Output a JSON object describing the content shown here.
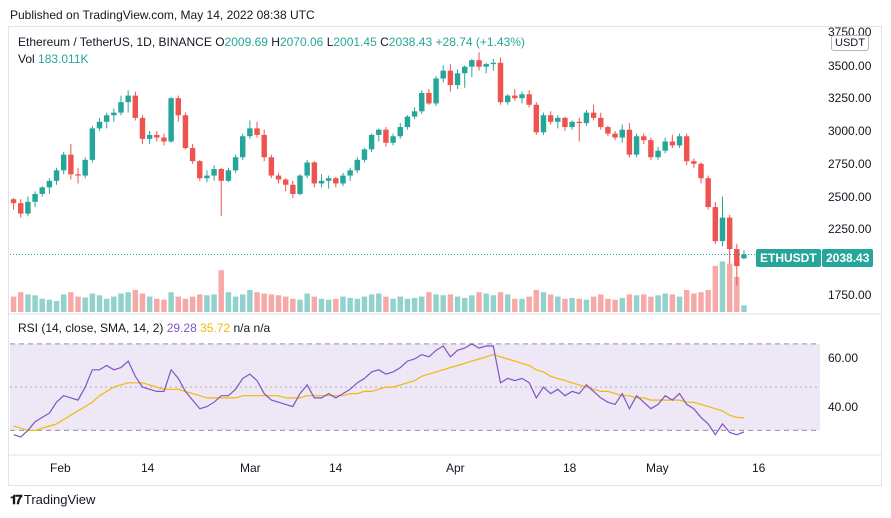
{
  "header": {
    "published": "Published on TradingView.com, May 14, 2022 08:38 UTC"
  },
  "legend": {
    "symbol": "Ethereum / TetherUS, 1D, BINANCE",
    "o_label": "O",
    "o": "2009.69",
    "h_label": "H",
    "h": "2070.06",
    "l_label": "L",
    "l": "2001.45",
    "c_label": "C",
    "c": "2038.43",
    "change": "+28.74 (+1.43%)",
    "vol_label": "Vol",
    "vol": "183.011K"
  },
  "rsi_legend": {
    "label": "RSI (14, close, SMA, 14, 2)",
    "rsi": "29.28",
    "ma": "35.72",
    "na1": "n/a",
    "na2": "n/a"
  },
  "tags": {
    "symbol": "ETHUSDT",
    "price": "2038.43",
    "currency": "USDT"
  },
  "price_axis": [
    "3750.00",
    "3500.00",
    "3250.00",
    "3000.00",
    "2750.00",
    "2500.00",
    "2250.00",
    "1750.00"
  ],
  "rsi_axis": [
    "60.00",
    "40.00"
  ],
  "x_axis": [
    "Feb",
    "14",
    "Mar",
    "14",
    "Apr",
    "18",
    "May",
    "16"
  ],
  "brand": "TradingView",
  "colors": {
    "up": "#26a69a",
    "down": "#ef5350",
    "rsi": "#7e57c2",
    "rsi_ma": "#f0b90b",
    "band": "#ede7f6"
  },
  "chart_data": {
    "type": "candlestick",
    "title": "Ethereum / TetherUS, 1D, BINANCE",
    "ylim": [
      1600,
      3750
    ],
    "candles": [
      [
        2460,
        2470,
        2380,
        2430
      ],
      [
        2430,
        2460,
        2320,
        2350
      ],
      [
        2350,
        2480,
        2330,
        2440
      ],
      [
        2440,
        2520,
        2400,
        2500
      ],
      [
        2500,
        2560,
        2480,
        2550
      ],
      [
        2550,
        2620,
        2500,
        2600
      ],
      [
        2600,
        2700,
        2570,
        2680
      ],
      [
        2680,
        2820,
        2650,
        2800
      ],
      [
        2800,
        2880,
        2610,
        2650
      ],
      [
        2650,
        2700,
        2580,
        2640
      ],
      [
        2640,
        2780,
        2620,
        2760
      ],
      [
        2760,
        3020,
        2740,
        3000
      ],
      [
        3000,
        3080,
        2980,
        3050
      ],
      [
        3050,
        3120,
        3000,
        3100
      ],
      [
        3100,
        3150,
        3050,
        3120
      ],
      [
        3120,
        3250,
        3100,
        3200
      ],
      [
        3200,
        3290,
        3120,
        3250
      ],
      [
        3250,
        3280,
        3060,
        3080
      ],
      [
        3080,
        3100,
        2880,
        2920
      ],
      [
        2920,
        2980,
        2880,
        2950
      ],
      [
        2950,
        2980,
        2900,
        2930
      ],
      [
        2930,
        2960,
        2870,
        2900
      ],
      [
        2900,
        3240,
        2890,
        3230
      ],
      [
        3230,
        3250,
        3050,
        3100
      ],
      [
        3100,
        3120,
        2840,
        2850
      ],
      [
        2850,
        2880,
        2730,
        2750
      ],
      [
        2750,
        2760,
        2600,
        2620
      ],
      [
        2620,
        2680,
        2590,
        2640
      ],
      [
        2640,
        2720,
        2600,
        2690
      ],
      [
        2690,
        2700,
        2330,
        2600
      ],
      [
        2600,
        2700,
        2590,
        2680
      ],
      [
        2680,
        2800,
        2660,
        2780
      ],
      [
        2780,
        2960,
        2760,
        2940
      ],
      [
        2940,
        3060,
        2920,
        3000
      ],
      [
        3000,
        3050,
        2930,
        2950
      ],
      [
        2950,
        2990,
        2750,
        2780
      ],
      [
        2780,
        2800,
        2620,
        2640
      ],
      [
        2640,
        2660,
        2580,
        2610
      ],
      [
        2610,
        2620,
        2520,
        2570
      ],
      [
        2570,
        2600,
        2470,
        2500
      ],
      [
        2500,
        2650,
        2490,
        2640
      ],
      [
        2640,
        2760,
        2620,
        2740
      ],
      [
        2740,
        2750,
        2550,
        2580
      ],
      [
        2580,
        2650,
        2550,
        2600
      ],
      [
        2600,
        2640,
        2540,
        2620
      ],
      [
        2620,
        2630,
        2550,
        2580
      ],
      [
        2580,
        2660,
        2560,
        2640
      ],
      [
        2640,
        2700,
        2600,
        2680
      ],
      [
        2680,
        2780,
        2660,
        2760
      ],
      [
        2760,
        2850,
        2740,
        2840
      ],
      [
        2840,
        2960,
        2820,
        2950
      ],
      [
        2950,
        3000,
        2900,
        2990
      ],
      [
        2990,
        3010,
        2860,
        2890
      ],
      [
        2890,
        2960,
        2870,
        2940
      ],
      [
        2940,
        3040,
        2920,
        3010
      ],
      [
        3010,
        3100,
        2990,
        3090
      ],
      [
        3090,
        3160,
        3070,
        3130
      ],
      [
        3130,
        3290,
        3110,
        3270
      ],
      [
        3270,
        3300,
        3180,
        3190
      ],
      [
        3190,
        3400,
        3170,
        3380
      ],
      [
        3380,
        3480,
        3350,
        3440
      ],
      [
        3440,
        3490,
        3280,
        3330
      ],
      [
        3330,
        3450,
        3300,
        3420
      ],
      [
        3420,
        3480,
        3310,
        3470
      ],
      [
        3470,
        3530,
        3390,
        3520
      ],
      [
        3520,
        3580,
        3440,
        3470
      ],
      [
        3470,
        3500,
        3420,
        3490
      ],
      [
        3490,
        3530,
        3440,
        3500
      ],
      [
        3500,
        3540,
        3180,
        3200
      ],
      [
        3200,
        3260,
        3180,
        3250
      ],
      [
        3250,
        3300,
        3210,
        3230
      ],
      [
        3230,
        3280,
        3190,
        3260
      ],
      [
        3260,
        3290,
        3160,
        3180
      ],
      [
        3180,
        3200,
        2950,
        2970
      ],
      [
        2970,
        3120,
        2950,
        3100
      ],
      [
        3100,
        3130,
        3030,
        3050
      ],
      [
        3050,
        3100,
        3000,
        3080
      ],
      [
        3080,
        3090,
        2980,
        3010
      ],
      [
        3010,
        3060,
        2990,
        3050
      ],
      [
        3050,
        3080,
        2900,
        3040
      ],
      [
        3040,
        3140,
        3020,
        3120
      ],
      [
        3120,
        3180,
        3060,
        3080
      ],
      [
        3080,
        3120,
        2990,
        3010
      ],
      [
        3010,
        3020,
        2940,
        2960
      ],
      [
        2960,
        2980,
        2910,
        2930
      ],
      [
        2930,
        3030,
        2890,
        2990
      ],
      [
        2990,
        3040,
        2780,
        2800
      ],
      [
        2800,
        2960,
        2780,
        2940
      ],
      [
        2940,
        2960,
        2880,
        2910
      ],
      [
        2910,
        2930,
        2760,
        2780
      ],
      [
        2780,
        2860,
        2760,
        2830
      ],
      [
        2830,
        2930,
        2810,
        2900
      ],
      [
        2900,
        2950,
        2850,
        2870
      ],
      [
        2870,
        2960,
        2850,
        2940
      ],
      [
        2940,
        2960,
        2720,
        2750
      ],
      [
        2750,
        2770,
        2700,
        2730
      ],
      [
        2730,
        2740,
        2580,
        2620
      ],
      [
        2620,
        2640,
        2380,
        2400
      ],
      [
        2400,
        2440,
        2120,
        2140
      ],
      [
        2140,
        2480,
        2100,
        2320
      ],
      [
        2320,
        2340,
        1970,
        2080
      ],
      [
        2080,
        2120,
        1800,
        1950
      ],
      [
        2009.69,
        2070.06,
        2001.45,
        2038.43
      ]
    ],
    "volume_relative": [
      0.35,
      0.45,
      0.4,
      0.38,
      0.3,
      0.28,
      0.25,
      0.4,
      0.45,
      0.35,
      0.33,
      0.42,
      0.38,
      0.3,
      0.35,
      0.42,
      0.45,
      0.5,
      0.42,
      0.35,
      0.3,
      0.28,
      0.45,
      0.35,
      0.3,
      0.35,
      0.4,
      0.38,
      0.4,
      0.95,
      0.45,
      0.35,
      0.4,
      0.5,
      0.45,
      0.42,
      0.4,
      0.38,
      0.35,
      0.3,
      0.28,
      0.42,
      0.35,
      0.3,
      0.28,
      0.3,
      0.35,
      0.32,
      0.3,
      0.35,
      0.4,
      0.42,
      0.35,
      0.3,
      0.35,
      0.3,
      0.32,
      0.35,
      0.45,
      0.4,
      0.38,
      0.4,
      0.35,
      0.32,
      0.38,
      0.45,
      0.42,
      0.38,
      0.45,
      0.4,
      0.3,
      0.3,
      0.35,
      0.5,
      0.45,
      0.4,
      0.35,
      0.3,
      0.32,
      0.3,
      0.28,
      0.35,
      0.4,
      0.3,
      0.28,
      0.32,
      0.4,
      0.38,
      0.4,
      0.35,
      0.38,
      0.42,
      0.4,
      0.35,
      0.5,
      0.42,
      0.45,
      0.5,
      1.05,
      1.15,
      1.1,
      0.8,
      0.15
    ],
    "rsi": [
      28,
      27,
      30,
      34,
      36,
      38,
      43,
      46,
      45,
      44,
      50,
      58,
      58,
      60,
      58,
      59,
      62,
      55,
      50,
      49,
      48,
      48,
      58,
      54,
      48,
      44,
      40,
      41,
      43,
      46,
      46,
      49,
      54,
      56,
      53,
      47,
      44,
      43,
      42,
      41,
      47,
      51,
      45,
      45,
      47,
      45,
      47,
      49,
      52,
      54,
      57,
      58,
      56,
      57,
      59,
      62,
      63,
      65,
      64,
      67,
      69,
      64,
      67,
      68,
      70,
      68,
      69,
      69,
      52,
      54,
      53,
      54,
      52,
      45,
      50,
      47,
      49,
      46,
      48,
      47,
      51,
      48,
      45,
      43,
      42,
      47,
      40,
      46,
      43,
      40,
      42,
      46,
      44,
      47,
      42,
      40,
      36,
      33,
      28,
      33,
      29,
      28,
      29.28
    ],
    "rsi_ma": [
      32,
      31,
      30,
      30,
      31,
      32,
      33,
      35,
      37,
      39,
      41,
      43,
      46,
      48,
      50,
      51,
      52,
      52,
      52,
      51,
      50,
      49,
      49,
      49,
      48,
      47,
      46,
      45,
      45,
      45,
      45,
      45,
      46,
      46,
      46,
      46,
      46,
      46,
      45,
      45,
      45,
      46,
      46,
      46,
      46,
      46,
      46,
      47,
      47,
      48,
      48,
      49,
      50,
      50,
      51,
      52,
      53,
      55,
      56,
      57,
      58,
      59,
      60,
      61,
      62,
      63,
      64,
      65,
      64,
      63,
      62,
      61,
      60,
      58,
      57,
      55,
      54,
      53,
      52,
      51,
      50,
      49,
      48,
      48,
      47,
      46,
      46,
      45,
      45,
      44,
      44,
      44,
      44,
      44,
      43,
      43,
      42,
      41,
      40,
      39,
      37,
      36,
      35.72
    ],
    "rsi_ylim": [
      20,
      75
    ],
    "rsi_bands": [
      30,
      50,
      70
    ]
  }
}
